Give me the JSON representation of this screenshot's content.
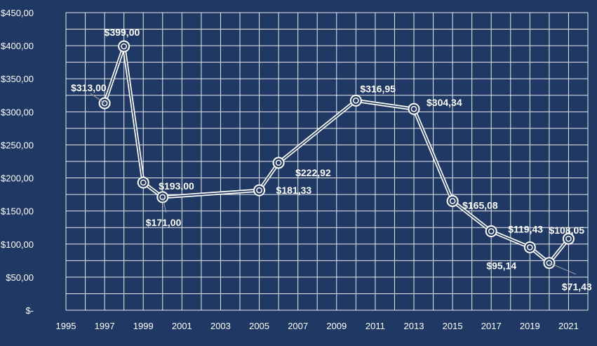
{
  "colors": {
    "background": "#1f3864",
    "grid": "#ffffff",
    "line": "#ffffff",
    "text": "#ffffff"
  },
  "chart_data": {
    "type": "line",
    "title": "",
    "xlabel": "",
    "ylabel": "",
    "xlim": [
      1995,
      2022
    ],
    "ylim": [
      0,
      450
    ],
    "grid": true,
    "legend": "none",
    "x_ticks": [
      "1995",
      "1997",
      "1999",
      "2001",
      "2003",
      "2005",
      "2007",
      "2009",
      "2011",
      "2013",
      "2015",
      "2017",
      "2019",
      "2021"
    ],
    "y_ticks": [
      "$-",
      "$50,00",
      "$100,00",
      "$150,00",
      "$200,00",
      "$250,00",
      "$300,00",
      "$350,00",
      "$400,00",
      "$450,00"
    ],
    "points": [
      {
        "x": 1997,
        "y": 313.0,
        "label": "$313,00"
      },
      {
        "x": 1998,
        "y": 399.0,
        "label": "$399,00"
      },
      {
        "x": 1999,
        "y": 193.0,
        "label": "$193,00"
      },
      {
        "x": 2000,
        "y": 171.0,
        "label": "$171,00"
      },
      {
        "x": 2005,
        "y": 181.33,
        "label": "$181,33"
      },
      {
        "x": 2006,
        "y": 222.92,
        "label": "$222,92"
      },
      {
        "x": 2010,
        "y": 316.95,
        "label": "$316,95"
      },
      {
        "x": 2013,
        "y": 304.34,
        "label": "$304,34"
      },
      {
        "x": 2015,
        "y": 165.08,
        "label": "$165,08"
      },
      {
        "x": 2017,
        "y": 119.43,
        "label": "$119,43"
      },
      {
        "x": 2019,
        "y": 95.14,
        "label": "$95,14"
      },
      {
        "x": 2020,
        "y": 71.43,
        "label": "$71,43"
      },
      {
        "x": 2021,
        "y": 108.05,
        "label": "$108,05"
      }
    ]
  }
}
